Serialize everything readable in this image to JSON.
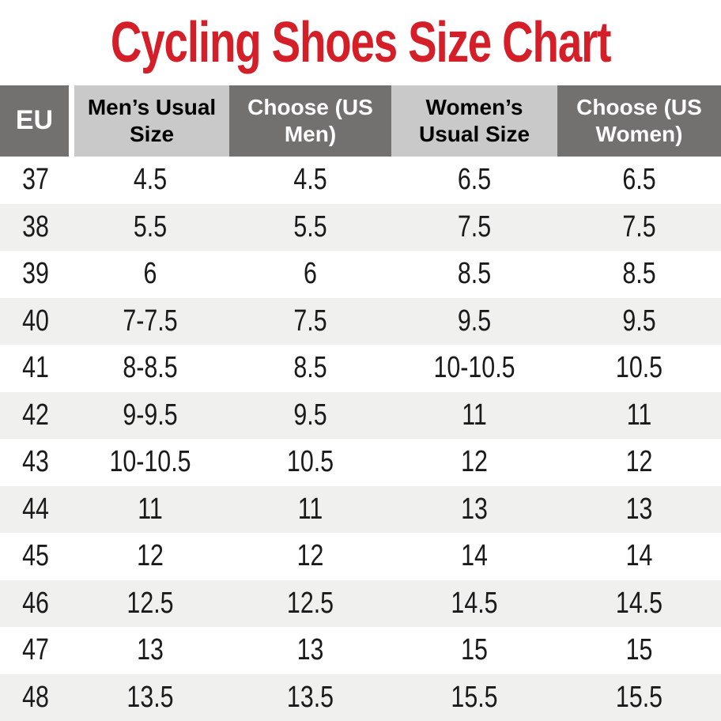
{
  "title": "Cycling Shoes Size Chart",
  "colors": {
    "title_red": "#d41f28",
    "header_dark": "#737070",
    "header_light": "#c9c9c9",
    "row_stripe": "#f0f0ee",
    "text_dark": "#1a1a1a",
    "header_text_on_dark": "#ffffff",
    "header_text_on_light": "#000000"
  },
  "chart_data": {
    "type": "table",
    "title": "Cycling Shoes Size Chart",
    "columns": [
      "EU",
      "Men’s Usual Size",
      "Choose (US Men)",
      "Women’s Usual Size",
      "Choose (US Women)"
    ],
    "rows": [
      [
        "37",
        "4.5",
        "4.5",
        "6.5",
        "6.5"
      ],
      [
        "38",
        "5.5",
        "5.5",
        "7.5",
        "7.5"
      ],
      [
        "39",
        "6",
        "6",
        "8.5",
        "8.5"
      ],
      [
        "40",
        "7-7.5",
        "7.5",
        "9.5",
        "9.5"
      ],
      [
        "41",
        "8-8.5",
        "8.5",
        "10-10.5",
        "10.5"
      ],
      [
        "42",
        "9-9.5",
        "9.5",
        "11",
        "11"
      ],
      [
        "43",
        "10-10.5",
        "10.5",
        "12",
        "12"
      ],
      [
        "44",
        "11",
        "11",
        "13",
        "13"
      ],
      [
        "45",
        "12",
        "12",
        "14",
        "14"
      ],
      [
        "46",
        "12.5",
        "12.5",
        "14.5",
        "14.5"
      ],
      [
        "47",
        "13",
        "13",
        "15",
        "15"
      ],
      [
        "48",
        "13.5",
        "13.5",
        "15.5",
        "15.5"
      ]
    ]
  }
}
